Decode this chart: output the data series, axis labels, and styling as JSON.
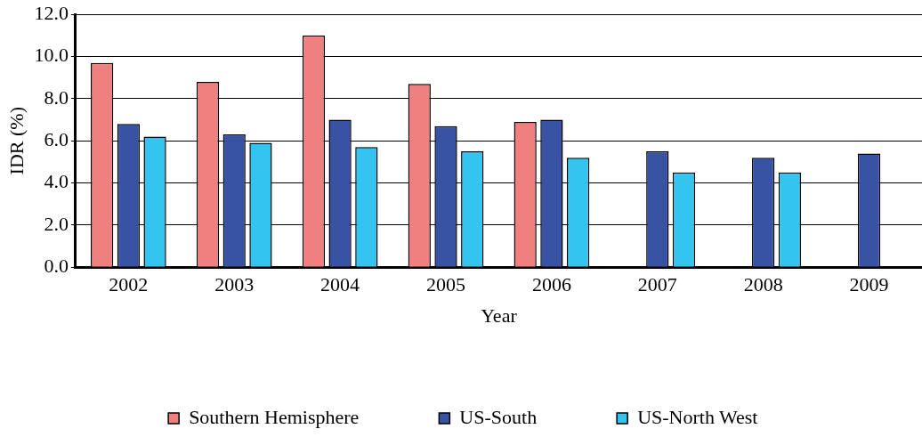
{
  "chart_data": {
    "type": "bar",
    "xlabel": "Year",
    "ylabel": "IDR (%)",
    "categories": [
      "2002",
      "2003",
      "2004",
      "2005",
      "2006",
      "2007",
      "2008",
      "2009"
    ],
    "series": [
      {
        "name": "Southern Hemisphere",
        "color": "#f08080",
        "values": [
          9.7,
          8.8,
          11.0,
          8.7,
          6.9,
          null,
          null,
          null
        ]
      },
      {
        "name": "US-South",
        "color": "#3853a4",
        "values": [
          6.8,
          6.3,
          7.0,
          6.7,
          7.0,
          5.5,
          5.2,
          5.4
        ]
      },
      {
        "name": "US-North West",
        "color": "#33c5f0",
        "values": [
          6.2,
          5.9,
          5.7,
          5.5,
          5.2,
          4.5,
          4.5,
          null
        ]
      }
    ],
    "ylim": [
      0,
      12
    ],
    "yticks": [
      {
        "value": 0,
        "label": "0.0"
      },
      {
        "value": 2,
        "label": "2.0"
      },
      {
        "value": 4,
        "label": "4.0"
      },
      {
        "value": 6,
        "label": "6.0"
      },
      {
        "value": 8,
        "label": "8.0"
      },
      {
        "value": 10,
        "label": "10.0"
      },
      {
        "value": 12,
        "label": "12.0"
      }
    ],
    "grid": "y",
    "legend": "bottom"
  }
}
